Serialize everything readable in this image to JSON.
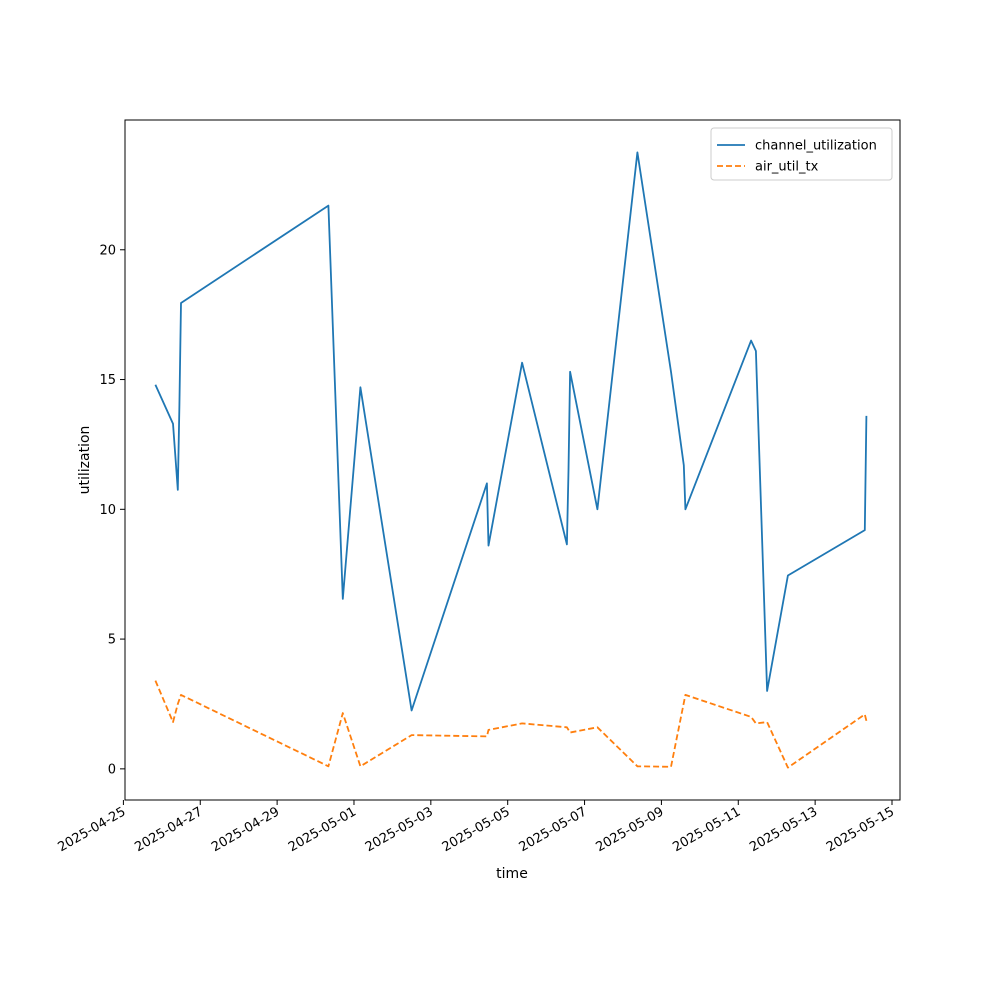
{
  "chart_data": {
    "type": "line",
    "title": "",
    "xlabel": "time",
    "ylabel": "utilization",
    "xlim": [
      "2025-04-25T01:00",
      "2025-05-15T05:00"
    ],
    "ylim": [
      -1.2,
      25
    ],
    "x_ticks": [
      "2025-04-25",
      "2025-04-27",
      "2025-04-29",
      "2025-05-01",
      "2025-05-03",
      "2025-05-05",
      "2025-05-07",
      "2025-05-09",
      "2025-05-11",
      "2025-05-13",
      "2025-05-15"
    ],
    "y_ticks": [
      0,
      5,
      10,
      15,
      20
    ],
    "grid": false,
    "legend": "top-right",
    "series": [
      {
        "name": "channel_utilization",
        "color": "#1f77b4",
        "style": "solid",
        "points": [
          [
            "2025-04-25T20:00",
            14.8
          ],
          [
            "2025-04-26T07:00",
            13.3
          ],
          [
            "2025-04-26T10:00",
            10.75
          ],
          [
            "2025-04-26T11:00",
            14.0
          ],
          [
            "2025-04-26T12:00",
            17.95
          ],
          [
            "2025-04-30T08:00",
            21.7
          ],
          [
            "2025-04-30T17:00",
            6.55
          ],
          [
            "2025-05-01T04:00",
            14.7
          ],
          [
            "2025-05-02T12:00",
            2.25
          ],
          [
            "2025-05-04T11:00",
            11.0
          ],
          [
            "2025-05-04T12:00",
            8.6
          ],
          [
            "2025-05-05T09:00",
            15.65
          ],
          [
            "2025-05-06T13:00",
            8.65
          ],
          [
            "2025-05-06T14:00",
            11.5
          ],
          [
            "2025-05-06T15:00",
            15.3
          ],
          [
            "2025-05-07T08:00",
            10.0
          ],
          [
            "2025-05-08T09:00",
            23.75
          ],
          [
            "2025-05-09T06:00",
            15.3
          ],
          [
            "2025-05-09T14:00",
            11.7
          ],
          [
            "2025-05-09T15:00",
            10.0
          ],
          [
            "2025-05-11T08:00",
            16.5
          ],
          [
            "2025-05-11T11:00",
            16.1
          ],
          [
            "2025-05-11T18:00",
            3.0
          ],
          [
            "2025-05-12T07:00",
            7.45
          ],
          [
            "2025-05-14T07:00",
            9.2
          ],
          [
            "2025-05-14T08:00",
            13.6
          ]
        ]
      },
      {
        "name": "air_util_tx",
        "color": "#ff7f0e",
        "style": "dashed",
        "points": [
          [
            "2025-04-25T20:00",
            3.4
          ],
          [
            "2025-04-26T07:00",
            1.8
          ],
          [
            "2025-04-26T10:00",
            2.5
          ],
          [
            "2025-04-26T12:00",
            2.85
          ],
          [
            "2025-04-30T08:00",
            0.1
          ],
          [
            "2025-04-30T17:00",
            2.15
          ],
          [
            "2025-05-01T04:00",
            0.1
          ],
          [
            "2025-05-02T12:00",
            1.3
          ],
          [
            "2025-05-04T11:00",
            1.25
          ],
          [
            "2025-05-04T12:00",
            1.5
          ],
          [
            "2025-05-05T09:00",
            1.75
          ],
          [
            "2025-05-06T13:00",
            1.6
          ],
          [
            "2025-05-06T15:00",
            1.4
          ],
          [
            "2025-05-07T08:00",
            1.6
          ],
          [
            "2025-05-08T09:00",
            0.1
          ],
          [
            "2025-05-09T06:00",
            0.08
          ],
          [
            "2025-05-09T15:00",
            2.85
          ],
          [
            "2025-05-11T08:00",
            2.0
          ],
          [
            "2025-05-11T11:00",
            1.75
          ],
          [
            "2025-05-11T18:00",
            1.8
          ],
          [
            "2025-05-12T07:00",
            0.05
          ],
          [
            "2025-05-14T07:00",
            2.1
          ],
          [
            "2025-05-14T08:00",
            1.85
          ]
        ]
      }
    ]
  }
}
